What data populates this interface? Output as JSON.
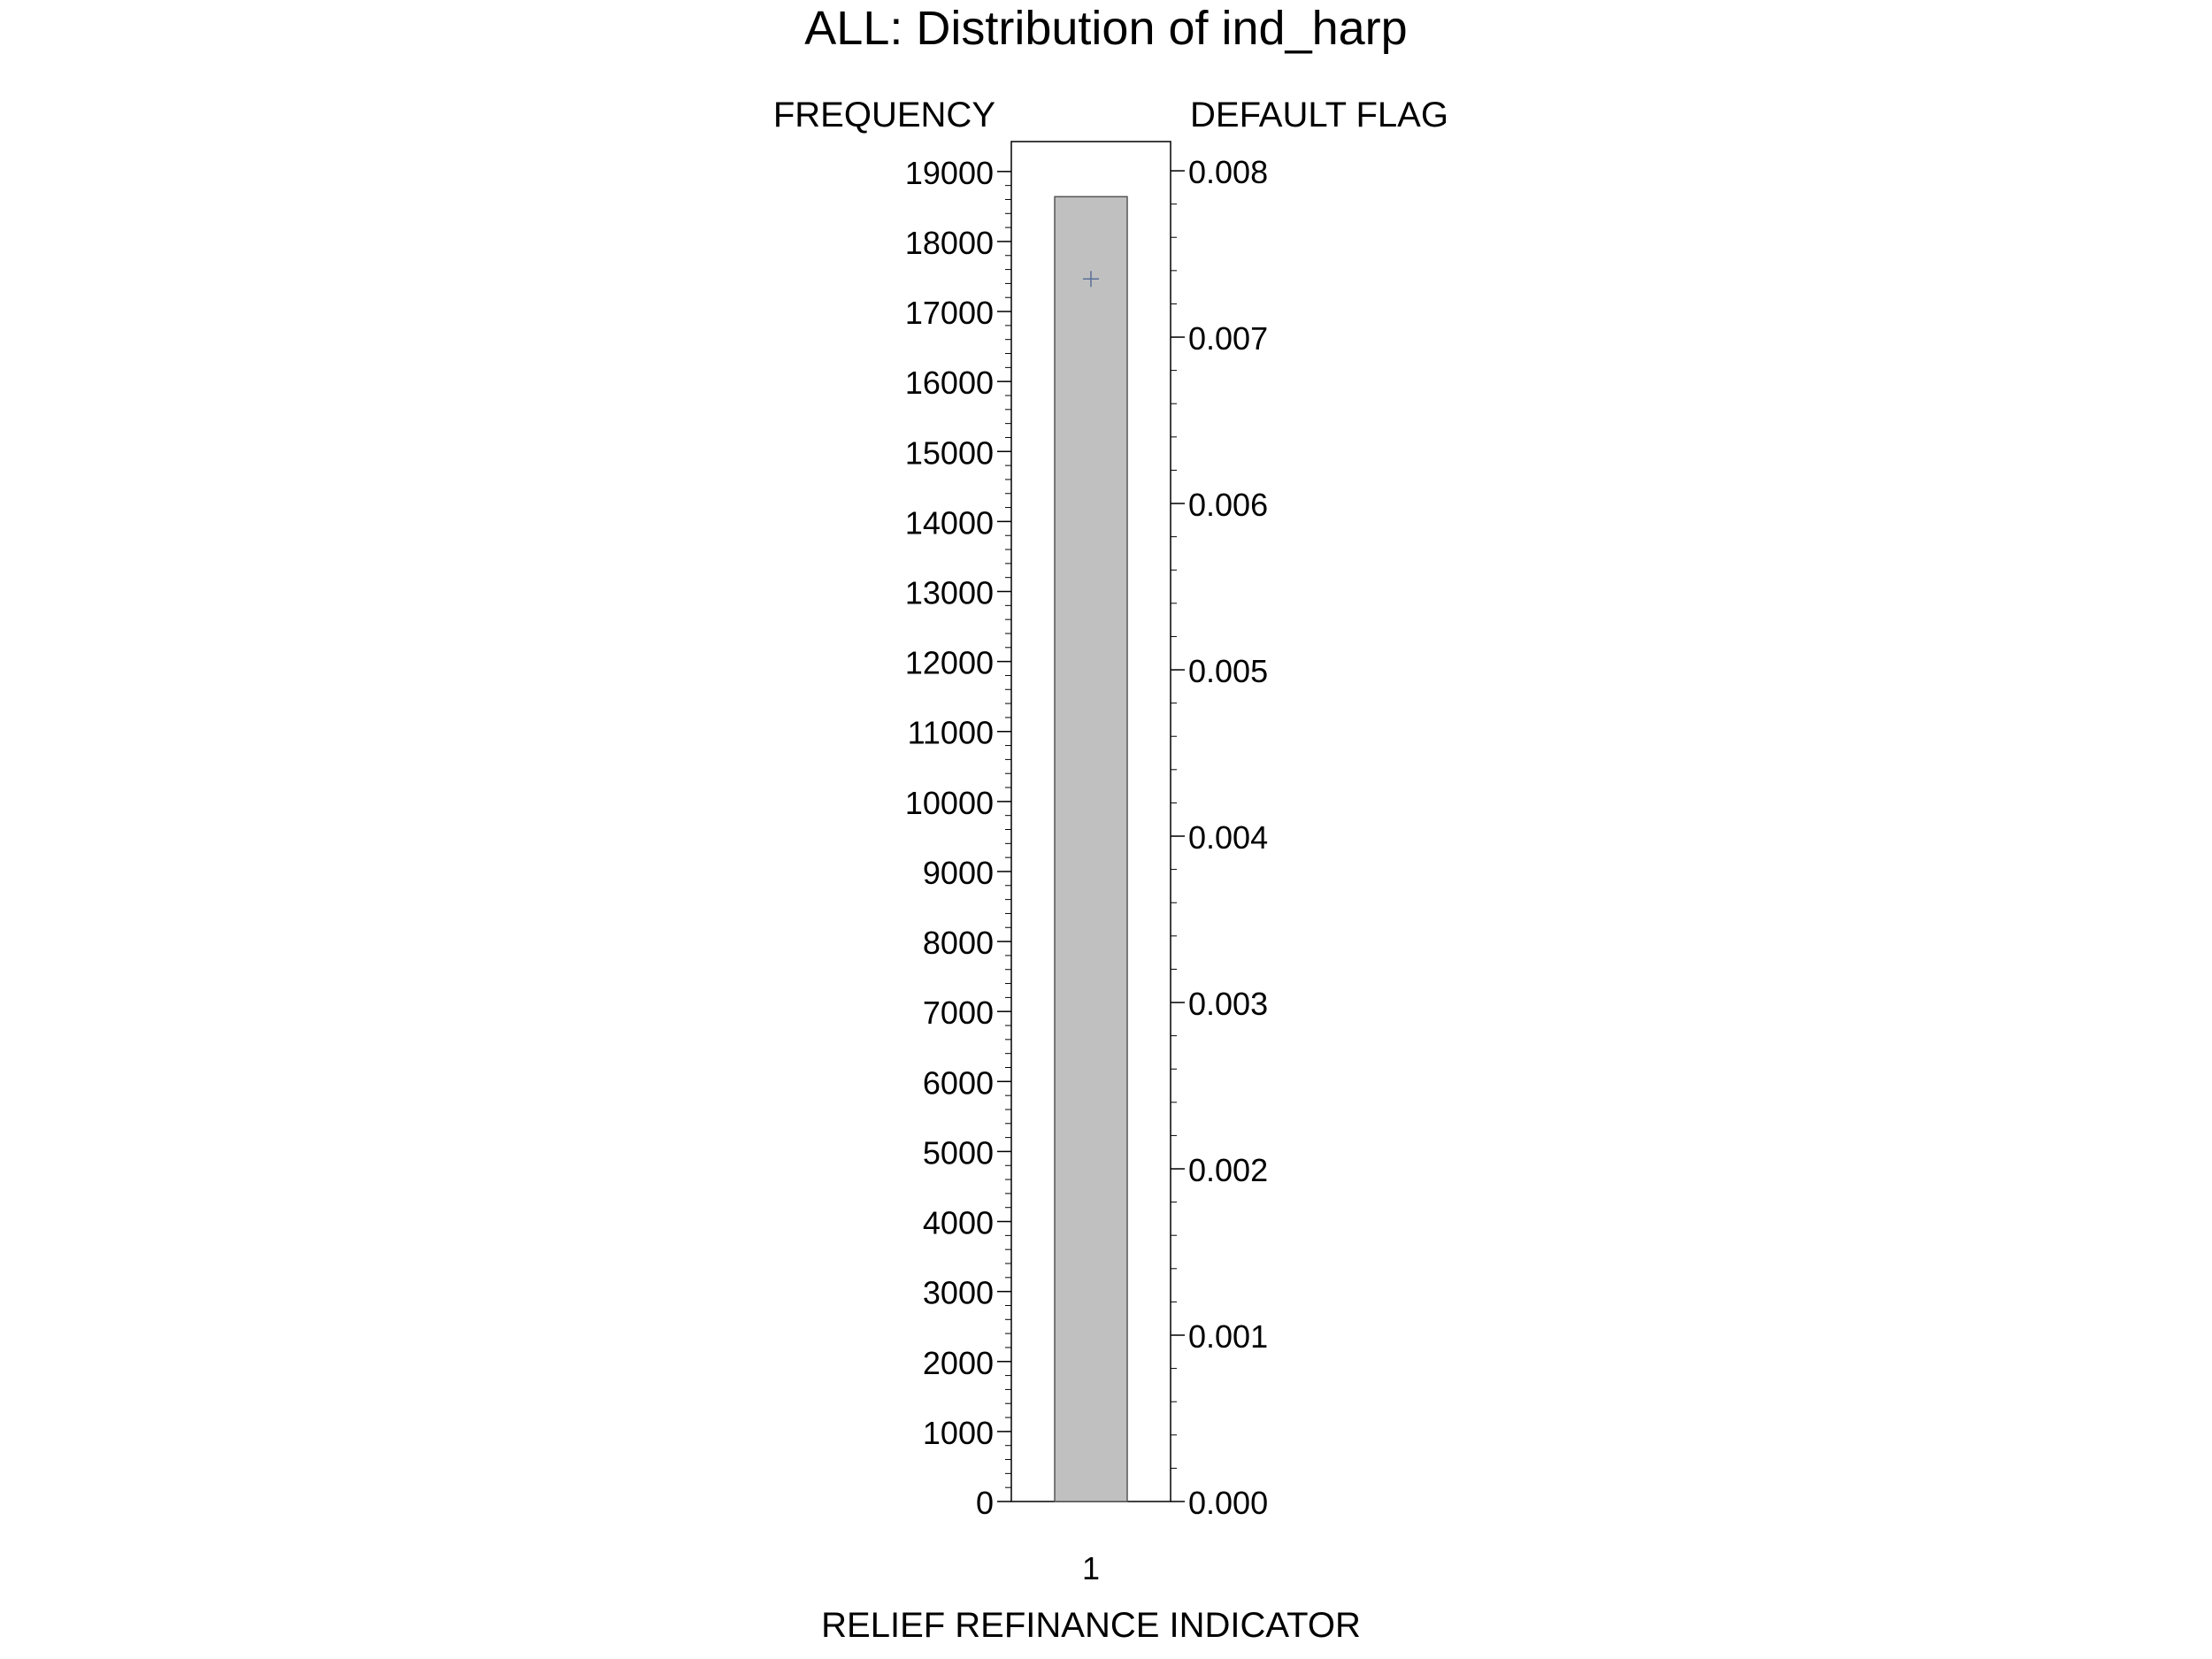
{
  "chart_data": {
    "type": "bar",
    "title": "ALL: Distribution of ind_harp",
    "xlabel": "RELIEF REFINANCE INDICATOR",
    "ylabel": "FREQUENCY",
    "y2label": "DEFAULT FLAG",
    "categories": [
      "1"
    ],
    "series": [
      {
        "name": "FREQUENCY",
        "axis": "left",
        "mark": "bar",
        "values": [
          18640
        ]
      },
      {
        "name": "DEFAULT FLAG",
        "axis": "right",
        "mark": "plus",
        "values": [
          0.00735
        ]
      }
    ],
    "ylim": [
      0,
      19200
    ],
    "y_ticks": [
      "0",
      "1000",
      "2000",
      "3000",
      "4000",
      "5000",
      "6000",
      "7000",
      "8000",
      "9000",
      "10000",
      "11000",
      "12000",
      "13000",
      "14000",
      "15000",
      "16000",
      "17000",
      "18000",
      "19000"
    ],
    "y2lim": [
      0,
      0.00808
    ],
    "y2_ticks": [
      "0.000",
      "0.001",
      "0.002",
      "0.003",
      "0.004",
      "0.005",
      "0.006",
      "0.007",
      "0.008"
    ],
    "grid": false,
    "legend": "none",
    "colors": {
      "bar_fill": "#c0c0c0",
      "bar_stroke": "#555555",
      "marker": "#5a6f9a",
      "axis": "#000000"
    }
  }
}
